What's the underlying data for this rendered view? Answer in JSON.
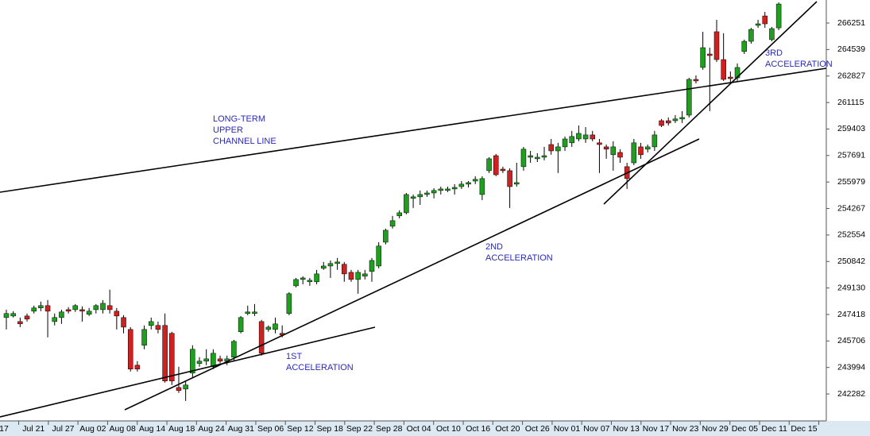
{
  "chart_data": {
    "type": "candlestick",
    "x": [
      0,
      1,
      2,
      3,
      4,
      5,
      6,
      7,
      8,
      9,
      10,
      11,
      12,
      13,
      14,
      15,
      16,
      17,
      18,
      19,
      20,
      21,
      22,
      23,
      24,
      25,
      26,
      27,
      28,
      29,
      30,
      31,
      32,
      33,
      34,
      35,
      36,
      37,
      38,
      39,
      40,
      41,
      42,
      43,
      44,
      45,
      46,
      47,
      48,
      49,
      50,
      51,
      52,
      53,
      54,
      55,
      56,
      57,
      58,
      59,
      60,
      61,
      62,
      63,
      64,
      65,
      66,
      67,
      68,
      69,
      70,
      71,
      72,
      73,
      74,
      75,
      76,
      77,
      78,
      79,
      80,
      81,
      82,
      83,
      84,
      85,
      86,
      87,
      88,
      89,
      90,
      91,
      92,
      93,
      94,
      95,
      96,
      97,
      98,
      99,
      100,
      101,
      102,
      103,
      104,
      105,
      106,
      107,
      108,
      109,
      110,
      111,
      112
    ],
    "open": [
      247220,
      247320,
      246960,
      247320,
      247630,
      247840,
      247990,
      246960,
      247220,
      247730,
      247730,
      247730,
      247430,
      247730,
      247730,
      247990,
      247630,
      247220,
      246450,
      244140,
      245430,
      246710,
      246710,
      246710,
      246200,
      242700,
      242600,
      243630,
      244250,
      244400,
      244040,
      244550,
      244400,
      244660,
      246300,
      247480,
      247480,
      246960,
      246450,
      246450,
      246200,
      247480,
      249270,
      249680,
      249530,
      249530,
      250400,
      250550,
      250710,
      250660,
      250140,
      249680,
      249890,
      250200,
      250550,
      252090,
      253120,
      253790,
      253990,
      254920,
      255020,
      255170,
      255270,
      255430,
      255430,
      255530,
      255680,
      255840,
      256040,
      255170,
      256710,
      257680,
      256810,
      256710,
      255840,
      256970,
      257580,
      257480,
      257580,
      258400,
      257990,
      258250,
      258510,
      258760,
      258760,
      259020,
      258510,
      258250,
      257740,
      257890,
      256970,
      257220,
      258250,
      258100,
      258250,
      259940,
      259940,
      259940,
      260050,
      260300,
      262610,
      263380,
      264250,
      265690,
      263890,
      262760,
      262710,
      264410,
      265070,
      266100,
      266710,
      265180,
      265940
    ],
    "high": [
      247730,
      247630,
      247220,
      247480,
      247990,
      248250,
      248350,
      247480,
      247730,
      247890,
      248090,
      247940,
      247840,
      248090,
      248350,
      249020,
      247840,
      247370,
      246600,
      244400,
      246710,
      247220,
      246960,
      247480,
      246300,
      244040,
      243120,
      245430,
      244660,
      245170,
      245170,
      244760,
      244760,
      245780,
      247320,
      247990,
      248090,
      247070,
      246710,
      247220,
      246710,
      248860,
      249780,
      249890,
      249780,
      250300,
      250810,
      250910,
      251070,
      250810,
      250300,
      250300,
      250300,
      251070,
      252090,
      252970,
      253790,
      254150,
      255270,
      255170,
      255430,
      255430,
      255580,
      255680,
      255680,
      255840,
      256040,
      256040,
      256350,
      256350,
      257580,
      257790,
      256970,
      256860,
      257220,
      258250,
      257990,
      257840,
      258250,
      258760,
      258510,
      258920,
      259280,
      259630,
      259530,
      259280,
      258760,
      258400,
      258610,
      258100,
      257220,
      258760,
      258510,
      258400,
      259280,
      260050,
      260150,
      260300,
      260560,
      262710,
      262870,
      265690,
      264660,
      266460,
      265590,
      263120,
      263640,
      265180,
      265940,
      266460,
      266970,
      266000,
      267590
    ],
    "low": [
      246450,
      247220,
      246600,
      246960,
      247480,
      247630,
      245940,
      246710,
      246810,
      247480,
      247580,
      246960,
      247320,
      247480,
      247480,
      247480,
      246450,
      246200,
      243730,
      243730,
      245170,
      246450,
      246200,
      243010,
      242860,
      242350,
      241830,
      243370,
      244040,
      244140,
      243890,
      244250,
      244140,
      244400,
      246200,
      247370,
      247320,
      244760,
      246300,
      246200,
      245940,
      247370,
      249170,
      249370,
      249270,
      249370,
      250300,
      249780,
      250300,
      249530,
      249530,
      248760,
      249680,
      249530,
      250400,
      251940,
      252970,
      253630,
      253890,
      254300,
      254500,
      255020,
      254920,
      255170,
      255330,
      255170,
      255530,
      255630,
      255840,
      254810,
      256560,
      256350,
      256560,
      254300,
      255680,
      256710,
      257220,
      257270,
      257380,
      257740,
      256560,
      257990,
      258250,
      258610,
      258510,
      258610,
      256560,
      257480,
      256710,
      257220,
      255530,
      257070,
      257480,
      257890,
      257990,
      259530,
      259630,
      259790,
      259790,
      260150,
      262350,
      263230,
      260560,
      263740,
      262510,
      262400,
      262510,
      264250,
      264920,
      265940,
      265940,
      265070,
      265790
    ],
    "close": [
      247480,
      247480,
      246810,
      247120,
      247840,
      247990,
      247630,
      247220,
      247580,
      247630,
      247990,
      247630,
      247630,
      247990,
      248140,
      247730,
      247320,
      246600,
      243890,
      243890,
      246450,
      246960,
      246450,
      243120,
      243120,
      242500,
      242860,
      245170,
      244400,
      244550,
      244910,
      244400,
      244550,
      245680,
      247220,
      247580,
      247580,
      244910,
      246600,
      246810,
      246090,
      248760,
      249680,
      249780,
      249630,
      250040,
      250550,
      250710,
      250810,
      250040,
      249680,
      250140,
      250040,
      250910,
      251840,
      252860,
      253480,
      253990,
      255170,
      255020,
      255170,
      255270,
      255430,
      255530,
      255530,
      255630,
      255840,
      255940,
      256150,
      256200,
      257480,
      256450,
      256710,
      255680,
      255940,
      258100,
      257680,
      257580,
      257680,
      257990,
      258250,
      258760,
      258920,
      259120,
      259020,
      258760,
      258400,
      258100,
      258250,
      257580,
      256200,
      258510,
      257740,
      258250,
      259020,
      259630,
      259790,
      260050,
      260150,
      262610,
      262510,
      264660,
      264150,
      263890,
      262610,
      262660,
      263380,
      265070,
      265840,
      266200,
      266200,
      265890,
      267480
    ],
    "up_color": "#1ea01e",
    "down_color": "#d02020",
    "xlim": [
      -0.92,
      118.9
    ],
    "xticks": [
      {
        "value": -0.35,
        "label": "17"
      },
      {
        "value": 3.95,
        "label": "Jul 21"
      },
      {
        "value": 8.24,
        "label": "Jul 27"
      },
      {
        "value": 12.54,
        "label": "Aug 02"
      },
      {
        "value": 16.84,
        "label": "Aug 08"
      },
      {
        "value": 21.14,
        "label": "Aug 14"
      },
      {
        "value": 25.43,
        "label": "Aug 18"
      },
      {
        "value": 29.73,
        "label": "Aug 24"
      },
      {
        "value": 34.03,
        "label": "Aug 31"
      },
      {
        "value": 38.32,
        "label": "Sep 06"
      },
      {
        "value": 42.62,
        "label": "Sep 12"
      },
      {
        "value": 46.92,
        "label": "Sep 18"
      },
      {
        "value": 51.21,
        "label": "Sep 22"
      },
      {
        "value": 55.51,
        "label": "Sep 28"
      },
      {
        "value": 59.81,
        "label": "Oct 04"
      },
      {
        "value": 64.11,
        "label": "Oct 10"
      },
      {
        "value": 68.4,
        "label": "Oct 16"
      },
      {
        "value": 72.7,
        "label": "Oct 20"
      },
      {
        "value": 77.0,
        "label": "Oct 26"
      },
      {
        "value": 81.29,
        "label": "Nov 01"
      },
      {
        "value": 85.59,
        "label": "Nov 07"
      },
      {
        "value": 89.89,
        "label": "Nov 13"
      },
      {
        "value": 94.18,
        "label": "Nov 17"
      },
      {
        "value": 98.48,
        "label": "Nov 23"
      },
      {
        "value": 102.78,
        "label": "Nov 29"
      },
      {
        "value": 107.08,
        "label": "Dec 05"
      },
      {
        "value": 111.37,
        "label": "Dec 11"
      },
      {
        "value": 115.67,
        "label": "Dec 15"
      }
    ],
    "ylim": [
      240540,
      267740
    ],
    "yticks": [
      242282,
      243994,
      245706,
      247418,
      249130,
      250842,
      252554,
      254267,
      255979,
      257691,
      259403,
      261115,
      262827,
      264539,
      266251
    ],
    "annotations": [
      [
        "LONG-TERM",
        "UPPER",
        "CHANNEL LINE"
      ],
      [
        "1ST",
        "ACCELERATION"
      ],
      [
        "2ND",
        "ACCELERATION"
      ],
      [
        "3RD",
        "ACCELERATION"
      ]
    ]
  }
}
